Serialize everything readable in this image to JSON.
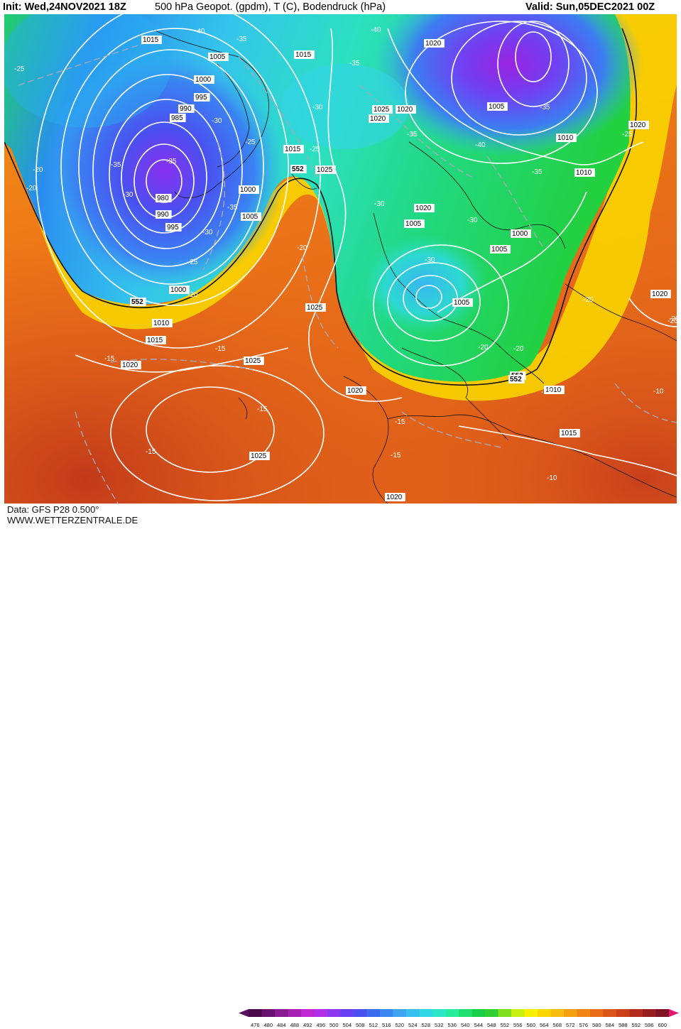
{
  "header": {
    "init": "Init: Wed,24NOV2021 18Z",
    "title": "500 hPa Geopot. (gpdm), T (C), Bodendruck (hPa)",
    "valid": "Valid: Sun,05DEC2021 00Z"
  },
  "footer": {
    "data": "Data: GFS P28 0.500°",
    "site": "WWW.WETTERZENTRALE.DE"
  },
  "colorbar": {
    "levels": [
      "476",
      "480",
      "484",
      "488",
      "492",
      "496",
      "500",
      "504",
      "508",
      "512",
      "516",
      "520",
      "524",
      "528",
      "532",
      "536",
      "540",
      "544",
      "548",
      "552",
      "556",
      "560",
      "564",
      "568",
      "572",
      "576",
      "580",
      "584",
      "588",
      "592",
      "596",
      "600"
    ],
    "colors": [
      "#4a0a4a",
      "#6a106e",
      "#8a1a92",
      "#a620b2",
      "#c028d2",
      "#b030e8",
      "#8c38f0",
      "#6a40f4",
      "#4a50f0",
      "#3a6cf0",
      "#3c88f2",
      "#40a4f0",
      "#38c0ee",
      "#30d8e8",
      "#2ce8c8",
      "#28ec9c",
      "#20e070",
      "#18d048",
      "#30d030",
      "#80e020",
      "#c8f010",
      "#f8f000",
      "#f8d800",
      "#f8bc10",
      "#f4a010",
      "#f08414",
      "#e86c18",
      "#dc5418",
      "#cc4018",
      "#b42c1c",
      "#9a1e20",
      "#801424"
    ],
    "arrow_left": "#5a1060",
    "arrow_right": "#e01874"
  },
  "pressure_labels": [
    {
      "text": "1015"
    },
    {
      "text": "1005"
    },
    {
      "text": "1000"
    },
    {
      "text": "995"
    },
    {
      "text": "990"
    },
    {
      "text": "985"
    },
    {
      "text": "980"
    },
    {
      "text": "990"
    },
    {
      "text": "995"
    },
    {
      "text": "1000"
    },
    {
      "text": "1005"
    },
    {
      "text": "1015"
    },
    {
      "text": "1020"
    },
    {
      "text": "1025"
    },
    {
      "text": "1020"
    },
    {
      "text": "1020"
    },
    {
      "text": "1015"
    },
    {
      "text": "1005"
    },
    {
      "text": "1010"
    },
    {
      "text": "1010"
    },
    {
      "text": "1020"
    },
    {
      "text": "1025"
    },
    {
      "text": "1020"
    },
    {
      "text": "1005"
    },
    {
      "text": "1000"
    },
    {
      "text": "1005"
    },
    {
      "text": "1005"
    },
    {
      "text": "1000"
    },
    {
      "text": "1010"
    },
    {
      "text": "1015"
    },
    {
      "text": "1020"
    },
    {
      "text": "1025"
    },
    {
      "text": "1025"
    },
    {
      "text": "1020"
    },
    {
      "text": "1010"
    },
    {
      "text": "1015"
    },
    {
      "text": "1025"
    },
    {
      "text": "1020"
    },
    {
      "text": "1020"
    }
  ],
  "temperature_labels": [
    {
      "text": "-25"
    },
    {
      "text": "-40"
    },
    {
      "text": "-35"
    },
    {
      "text": "-35"
    },
    {
      "text": "-40"
    },
    {
      "text": "-30"
    },
    {
      "text": "-35"
    },
    {
      "text": "-30"
    },
    {
      "text": "-30"
    },
    {
      "text": "-25"
    },
    {
      "text": "-25"
    },
    {
      "text": "-35"
    },
    {
      "text": "-35"
    },
    {
      "text": "-30"
    },
    {
      "text": "-40"
    },
    {
      "text": "-35"
    },
    {
      "text": "-25"
    },
    {
      "text": "-35"
    },
    {
      "text": "-30"
    },
    {
      "text": "-30"
    },
    {
      "text": "-25"
    },
    {
      "text": "-20"
    },
    {
      "text": "-20"
    },
    {
      "text": "-20"
    },
    {
      "text": "-15"
    },
    {
      "text": "-15"
    },
    {
      "text": "-20"
    },
    {
      "text": "-20"
    },
    {
      "text": "-20"
    },
    {
      "text": "-15"
    },
    {
      "text": "-15"
    },
    {
      "text": "-15"
    },
    {
      "text": "-15"
    },
    {
      "text": "-10"
    },
    {
      "text": "-10"
    },
    {
      "text": "-20"
    },
    {
      "text": "-15"
    },
    {
      "text": "-20"
    },
    {
      "text": "-30"
    },
    {
      "text": "-20"
    },
    {
      "text": "-35"
    }
  ],
  "geopotential_labels": [
    {
      "text": "552"
    },
    {
      "text": "552"
    },
    {
      "text": "552"
    },
    {
      "text": "552"
    }
  ]
}
